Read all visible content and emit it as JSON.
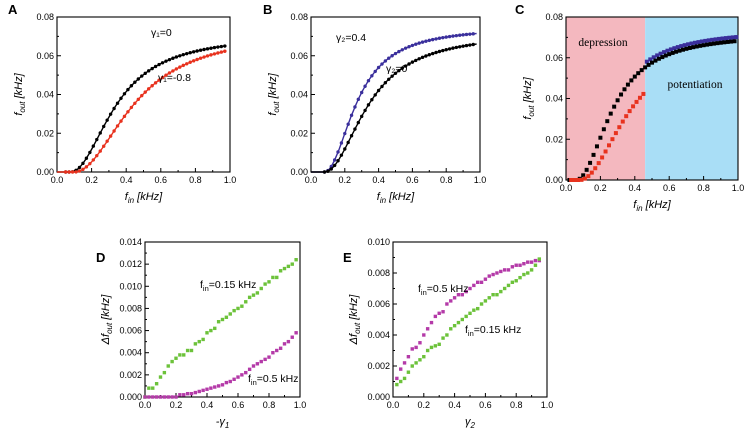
{
  "chart_data": [
    {
      "id": "A",
      "type": "scatter+line",
      "panel_label": "A",
      "xlabel": "f_in [kHz]",
      "ylabel": "f_out [kHz]",
      "xlim": [
        0,
        1.0
      ],
      "ylim": [
        0,
        0.08
      ],
      "xticks": [
        "0.0",
        "0.2",
        "0.4",
        "0.6",
        "0.8",
        "1.0"
      ],
      "yticks": [
        "0.00",
        "0.02",
        "0.04",
        "0.06",
        "0.08"
      ],
      "series": [
        {
          "name": "γ1=0",
          "label": "γ₁=0",
          "color": "#000000",
          "params": {
            "x0": 0.08,
            "v": 0.071,
            "k": 0.27
          },
          "x": [
            0.05,
            0.07,
            0.09,
            0.11,
            0.13,
            0.15,
            0.17,
            0.19,
            0.21,
            0.23,
            0.25,
            0.27,
            0.29,
            0.31,
            0.33,
            0.35,
            0.37,
            0.39,
            0.41,
            0.43,
            0.45,
            0.47,
            0.49,
            0.51,
            0.53,
            0.55,
            0.57,
            0.59,
            0.61,
            0.63,
            0.65,
            0.67,
            0.69,
            0.71,
            0.73,
            0.75,
            0.77,
            0.79,
            0.81,
            0.83,
            0.85,
            0.87,
            0.89,
            0.91,
            0.93,
            0.95,
            0.97
          ]
        },
        {
          "name": "γ1=-0.8",
          "label": "γ₁=-0.8",
          "color": "#e8321e",
          "params": {
            "x0": 0.1,
            "v": 0.073,
            "k": 0.36
          },
          "x": [
            0.05,
            0.07,
            0.09,
            0.11,
            0.13,
            0.15,
            0.17,
            0.19,
            0.21,
            0.23,
            0.25,
            0.27,
            0.29,
            0.31,
            0.33,
            0.35,
            0.37,
            0.39,
            0.41,
            0.43,
            0.45,
            0.47,
            0.49,
            0.51,
            0.53,
            0.55,
            0.57,
            0.59,
            0.61,
            0.63,
            0.65,
            0.67,
            0.69,
            0.71,
            0.73,
            0.75,
            0.77,
            0.79,
            0.81,
            0.83,
            0.85,
            0.87,
            0.89,
            0.91,
            0.93,
            0.95,
            0.97
          ]
        }
      ]
    },
    {
      "id": "B",
      "type": "scatter+line",
      "panel_label": "B",
      "xlabel": "f_in [kHz]",
      "ylabel": "f_out [kHz]",
      "xlim": [
        0,
        1.0
      ],
      "ylim": [
        0,
        0.08
      ],
      "xticks": [
        "0.0",
        "0.2",
        "0.4",
        "0.6",
        "0.8",
        "1.0"
      ],
      "yticks": [
        "0.00",
        "0.02",
        "0.04",
        "0.06",
        "0.08"
      ],
      "series": [
        {
          "name": "γ2=0.4",
          "label": "γ₂=0.4",
          "color": "#3a2f9c",
          "params": {
            "x0": 0.08,
            "v": 0.075,
            "k": 0.2
          },
          "x": [
            0.08,
            0.1,
            0.12,
            0.14,
            0.16,
            0.18,
            0.2,
            0.22,
            0.24,
            0.26,
            0.28,
            0.3,
            0.32,
            0.34,
            0.36,
            0.38,
            0.4,
            0.42,
            0.44,
            0.46,
            0.48,
            0.5,
            0.52,
            0.54,
            0.56,
            0.58,
            0.6,
            0.62,
            0.64,
            0.66,
            0.68,
            0.7,
            0.72,
            0.74,
            0.76,
            0.78,
            0.8,
            0.82,
            0.84,
            0.86,
            0.88,
            0.9,
            0.92,
            0.94,
            0.96
          ]
        },
        {
          "name": "γ2=0",
          "label": "γ₂=0",
          "color": "#000000",
          "params": {
            "x0": 0.08,
            "v": 0.072,
            "k": 0.27
          },
          "x": [
            0.08,
            0.1,
            0.12,
            0.14,
            0.16,
            0.18,
            0.2,
            0.22,
            0.24,
            0.26,
            0.28,
            0.3,
            0.32,
            0.34,
            0.36,
            0.38,
            0.4,
            0.42,
            0.44,
            0.46,
            0.48,
            0.5,
            0.52,
            0.54,
            0.56,
            0.58,
            0.6,
            0.62,
            0.64,
            0.66,
            0.68,
            0.7,
            0.72,
            0.74,
            0.76,
            0.78,
            0.8,
            0.82,
            0.84,
            0.86,
            0.88,
            0.9,
            0.92,
            0.94,
            0.96
          ]
        }
      ]
    },
    {
      "id": "C",
      "type": "scatter",
      "panel_label": "C",
      "xlabel": "f_in [kHz]",
      "ylabel": "f_out [kHz]",
      "xlim": [
        0,
        1.0
      ],
      "ylim": [
        0,
        0.08
      ],
      "xticks": [
        "0.0",
        "0.2",
        "0.4",
        "0.6",
        "0.8",
        "1.0"
      ],
      "yticks": [
        "0.00",
        "0.02",
        "0.04",
        "0.06",
        "0.08"
      ],
      "regions": [
        {
          "label": "depression",
          "from": 0.0,
          "to": 0.46,
          "color": "#f4b8bf"
        },
        {
          "label": "potentiation",
          "from": 0.46,
          "to": 1.0,
          "color": "#a9def6"
        }
      ],
      "series": [
        {
          "name": "black",
          "color": "#000000",
          "params": {
            "x0": 0.06,
            "v": 0.072,
            "k": 0.22
          },
          "x": [
            0.02,
            0.04,
            0.06,
            0.08,
            0.1,
            0.12,
            0.14,
            0.16,
            0.18,
            0.2,
            0.22,
            0.24,
            0.26,
            0.28,
            0.3,
            0.32,
            0.34,
            0.36,
            0.38,
            0.4,
            0.42,
            0.44,
            0.46
          ]
        },
        {
          "name": "red",
          "color": "#e8321e",
          "params": {
            "x0": 0.08,
            "v": 0.07,
            "k": 0.3
          },
          "x": [
            0.03,
            0.05,
            0.07,
            0.09,
            0.11,
            0.13,
            0.15,
            0.17,
            0.19,
            0.21,
            0.23,
            0.25,
            0.27,
            0.29,
            0.31,
            0.33,
            0.35,
            0.37,
            0.39,
            0.41,
            0.43,
            0.45
          ]
        },
        {
          "name": "blue",
          "color": "#3a2f9c",
          "params": {
            "x0": 0.05,
            "v": 0.074,
            "k": 0.22
          },
          "x": [
            0.47,
            0.49,
            0.51,
            0.53,
            0.55,
            0.57,
            0.59,
            0.61,
            0.63,
            0.65,
            0.67,
            0.69,
            0.71,
            0.73,
            0.75,
            0.77,
            0.79,
            0.81,
            0.83,
            0.85,
            0.87,
            0.89,
            0.91,
            0.93,
            0.95,
            0.97,
            0.99
          ]
        },
        {
          "name": "black-high",
          "color": "#000000",
          "params": {
            "x0": 0.06,
            "v": 0.072,
            "k": 0.22
          },
          "x": [
            0.48,
            0.5,
            0.52,
            0.54,
            0.56,
            0.58,
            0.6,
            0.62,
            0.64,
            0.66,
            0.68,
            0.7,
            0.72,
            0.74,
            0.76,
            0.78,
            0.8,
            0.82,
            0.84,
            0.86,
            0.88,
            0.9,
            0.92,
            0.94,
            0.96,
            0.98
          ]
        }
      ]
    },
    {
      "id": "D",
      "type": "scatter",
      "panel_label": "D",
      "xlabel": "-γ1",
      "ylabel": "Δf_out [kHz]",
      "xlim": [
        0,
        1.0
      ],
      "ylim": [
        0,
        0.014
      ],
      "xticks": [
        "0.0",
        "0.2",
        "0.4",
        "0.6",
        "0.8",
        "1.0"
      ],
      "yticks": [
        "0.000",
        "0.002",
        "0.004",
        "0.006",
        "0.008",
        "0.010",
        "0.012",
        "0.014"
      ],
      "series": [
        {
          "name": "fin=0.15 kHz",
          "label_main": "f",
          "label_sub": "in",
          "label_rest": "=0.15 kHz",
          "color": "#6cc23a",
          "x": [
            0.0,
            0.025,
            0.05,
            0.075,
            0.1,
            0.125,
            0.15,
            0.175,
            0.2,
            0.225,
            0.25,
            0.275,
            0.3,
            0.325,
            0.35,
            0.375,
            0.4,
            0.425,
            0.45,
            0.475,
            0.5,
            0.525,
            0.55,
            0.575,
            0.6,
            0.625,
            0.65,
            0.675,
            0.7,
            0.725,
            0.75,
            0.775,
            0.8,
            0.825,
            0.85,
            0.875,
            0.9,
            0.925,
            0.95,
            0.975
          ],
          "y": [
            0.0,
            0.0008,
            0.0008,
            0.0012,
            0.0018,
            0.0022,
            0.0028,
            0.0032,
            0.0035,
            0.0038,
            0.0038,
            0.0042,
            0.0042,
            0.0048,
            0.005,
            0.0052,
            0.0058,
            0.006,
            0.0062,
            0.0068,
            0.007,
            0.0072,
            0.0075,
            0.0078,
            0.008,
            0.0082,
            0.0086,
            0.009,
            0.0092,
            0.0094,
            0.0098,
            0.0102,
            0.0104,
            0.0108,
            0.0108,
            0.0114,
            0.0116,
            0.0118,
            0.012,
            0.0124
          ]
        },
        {
          "name": "fin=0.5 kHz",
          "label_main": "f",
          "label_sub": "in",
          "label_rest": "=0.5 kHz",
          "color": "#b43aa8",
          "x": [
            0.0,
            0.025,
            0.05,
            0.075,
            0.1,
            0.125,
            0.15,
            0.175,
            0.2,
            0.225,
            0.25,
            0.275,
            0.3,
            0.325,
            0.35,
            0.375,
            0.4,
            0.425,
            0.45,
            0.475,
            0.5,
            0.525,
            0.55,
            0.575,
            0.6,
            0.625,
            0.65,
            0.675,
            0.7,
            0.725,
            0.75,
            0.775,
            0.8,
            0.825,
            0.85,
            0.875,
            0.9,
            0.925,
            0.95,
            0.975
          ],
          "y": [
            0.0,
            0.0,
            0.0,
            0.0,
            0.0,
            0.0,
            0.0,
            0.0,
            0.0,
            0.0002,
            0.0002,
            0.0003,
            0.0003,
            0.0004,
            0.0005,
            0.0006,
            0.0007,
            0.0008,
            0.0009,
            0.001,
            0.0011,
            0.0013,
            0.0014,
            0.0016,
            0.0018,
            0.002,
            0.0022,
            0.0025,
            0.0028,
            0.003,
            0.0032,
            0.0034,
            0.0036,
            0.004,
            0.0042,
            0.0044,
            0.0048,
            0.005,
            0.0054,
            0.0058
          ]
        }
      ]
    },
    {
      "id": "E",
      "type": "scatter",
      "panel_label": "E",
      "xlabel": "γ2",
      "ylabel": "Δf_out [kHz]",
      "xlim": [
        0,
        1.0
      ],
      "ylim": [
        0,
        0.01
      ],
      "xticks": [
        "0.0",
        "0.2",
        "0.4",
        "0.6",
        "0.8",
        "1.0"
      ],
      "yticks": [
        "0.000",
        "0.002",
        "0.004",
        "0.006",
        "0.008",
        "0.010"
      ],
      "series": [
        {
          "name": "fin=0.5 kHz",
          "label_main": "f",
          "label_sub": "in",
          "label_rest": "=0.5 kHz",
          "color": "#b43aa8",
          "x": [
            0.025,
            0.05,
            0.075,
            0.1,
            0.125,
            0.15,
            0.175,
            0.2,
            0.225,
            0.25,
            0.275,
            0.3,
            0.325,
            0.35,
            0.375,
            0.4,
            0.425,
            0.45,
            0.475,
            0.5,
            0.525,
            0.55,
            0.575,
            0.6,
            0.625,
            0.65,
            0.675,
            0.7,
            0.725,
            0.75,
            0.775,
            0.8,
            0.825,
            0.85,
            0.875,
            0.9,
            0.925,
            0.95
          ],
          "y": [
            0.0012,
            0.0018,
            0.0022,
            0.0026,
            0.0031,
            0.0032,
            0.0035,
            0.004,
            0.0044,
            0.0048,
            0.0052,
            0.0054,
            0.0055,
            0.006,
            0.0062,
            0.0064,
            0.0066,
            0.0066,
            0.0068,
            0.007,
            0.0072,
            0.0074,
            0.0074,
            0.0076,
            0.0078,
            0.0079,
            0.008,
            0.0081,
            0.0082,
            0.0082,
            0.0084,
            0.0085,
            0.0085,
            0.0086,
            0.0087,
            0.0087,
            0.0088,
            0.0088
          ]
        },
        {
          "name": "fin=0.15 kHz",
          "label_main": "f",
          "label_sub": "in",
          "label_rest": "=0.15 kHz",
          "color": "#6cc23a",
          "x": [
            0.025,
            0.05,
            0.075,
            0.1,
            0.125,
            0.15,
            0.175,
            0.2,
            0.225,
            0.25,
            0.275,
            0.3,
            0.325,
            0.35,
            0.375,
            0.4,
            0.425,
            0.45,
            0.475,
            0.5,
            0.525,
            0.55,
            0.575,
            0.6,
            0.625,
            0.65,
            0.675,
            0.7,
            0.725,
            0.75,
            0.775,
            0.8,
            0.825,
            0.85,
            0.875,
            0.9,
            0.925,
            0.95
          ],
          "y": [
            0.0008,
            0.001,
            0.0012,
            0.0016,
            0.002,
            0.0022,
            0.0024,
            0.0026,
            0.003,
            0.0032,
            0.0033,
            0.0034,
            0.0038,
            0.004,
            0.0044,
            0.0046,
            0.0048,
            0.005,
            0.0052,
            0.0054,
            0.0056,
            0.0057,
            0.006,
            0.0062,
            0.0064,
            0.0066,
            0.0066,
            0.0068,
            0.007,
            0.0072,
            0.0074,
            0.0075,
            0.0077,
            0.0079,
            0.008,
            0.0082,
            0.0085,
            0.0089
          ]
        }
      ]
    }
  ]
}
